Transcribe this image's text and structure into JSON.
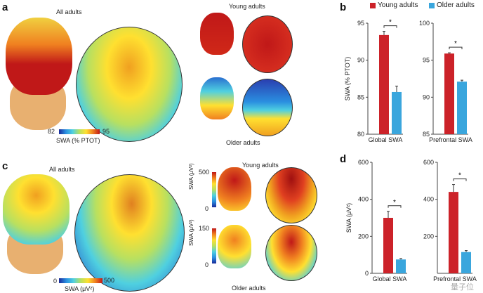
{
  "panels": {
    "a": "a",
    "b": "b",
    "c": "c",
    "d": "d"
  },
  "labels": {
    "all_adults_a": "All adults",
    "young_a": "Young adults",
    "older_a": "Older adults",
    "all_adults_c": "All adults",
    "young_c": "Young adults",
    "older_c": "Older adults"
  },
  "colorbars": {
    "a_min": "82",
    "a_max": "95",
    "a_label": "SWA (% PTOT)",
    "c_min": "0",
    "c_max": "500",
    "c_label": "SWA (μV²)",
    "young_max": "500",
    "young_min": "0",
    "older_max": "150",
    "older_min": "0",
    "small_label": "SWA (μV²)"
  },
  "watermark": "量子位",
  "colors": {
    "young": "#cc2229",
    "older": "#3aa6dd"
  },
  "chart_data": [
    {
      "type": "bar",
      "panel": "b",
      "legend": [
        "Young adults",
        "Older adults"
      ],
      "ylabel": "SWA (% PTOT)",
      "charts": [
        {
          "category": "Global SWA",
          "ylim": [
            80,
            95
          ],
          "ticks": [
            80,
            85,
            90,
            95
          ],
          "values": [
            93.4,
            85.7
          ],
          "errors": [
            0.5,
            0.8
          ],
          "sig": "*"
        },
        {
          "category": "Prefrontal SWA",
          "ylim": [
            85,
            100
          ],
          "ticks": [
            85,
            90,
            95,
            100
          ],
          "values": [
            95.9,
            92.1
          ],
          "errors": [
            0.1,
            0.2
          ],
          "sig": "*"
        }
      ]
    },
    {
      "type": "bar",
      "panel": "d",
      "legend": [
        "Young adults",
        "Older adults"
      ],
      "ylabel": "SWA (μV²)",
      "charts": [
        {
          "category": "Global SWA",
          "ylim": [
            0,
            600
          ],
          "ticks": [
            0,
            200,
            400,
            600
          ],
          "values": [
            300,
            75
          ],
          "errors": [
            35,
            5
          ],
          "sig": "*"
        },
        {
          "category": "Prefrontal SWA",
          "ylim": [
            0,
            600
          ],
          "ticks": [
            200,
            400,
            600
          ],
          "values": [
            440,
            115
          ],
          "errors": [
            40,
            8
          ],
          "sig": "*"
        }
      ]
    }
  ]
}
